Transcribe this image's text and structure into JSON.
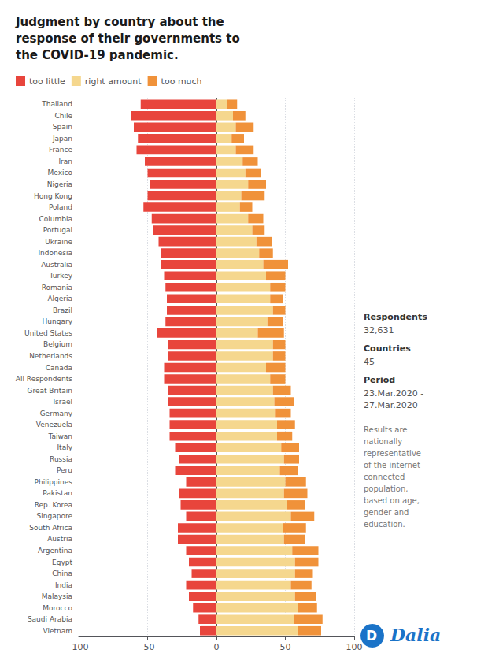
{
  "chart_data": {
    "type": "bar",
    "orientation": "horizontal",
    "stacked": true,
    "title": "Judgment by country about the\nresponse of their governments to\nthe COVID-19 pandemic.",
    "categories": [
      "Thailand",
      "Chile",
      "Spain",
      "Japan",
      "France",
      "Iran",
      "Mexico",
      "Nigeria",
      "Hong Kong",
      "Poland",
      "Columbia",
      "Portugal",
      "Ukraine",
      "Indonesia",
      "Australia",
      "Turkey",
      "Romania",
      "Algeria",
      "Brazil",
      "Hungary",
      "United States",
      "Belgium",
      "Netherlands",
      "Canada",
      "All Respondents",
      "Great Britain",
      "Israel",
      "Germany",
      "Venezuela",
      "Taiwan",
      "Italy",
      "Russia",
      "Peru",
      "Philippines",
      "Pakistan",
      "Rep. Korea",
      "Singapore",
      "South Africa",
      "Austria",
      "Argentina",
      "Egypt",
      "China",
      "India",
      "Malaysia",
      "Morocco",
      "Saudi Arabia",
      "Vietnam"
    ],
    "series": [
      {
        "name": "too little",
        "color": "#e8453c",
        "values": [
          -55,
          -62,
          -60,
          -57,
          -58,
          -52,
          -50,
          -48,
          -50,
          -53,
          -47,
          -46,
          -42,
          -40,
          -40,
          -38,
          -37,
          -36,
          -36,
          -37,
          -43,
          -35,
          -35,
          -38,
          -38,
          -35,
          -35,
          -34,
          -34,
          -34,
          -30,
          -27,
          -30,
          -22,
          -27,
          -26,
          -22,
          -28,
          -28,
          -22,
          -20,
          -18,
          -22,
          -20,
          -17,
          -13,
          -12
        ]
      },
      {
        "name": "right amount",
        "color": "#f5d78e",
        "values": [
          8,
          12,
          14,
          11,
          14,
          19,
          21,
          23,
          18,
          17,
          23,
          26,
          29,
          31,
          34,
          36,
          39,
          39,
          41,
          37,
          30,
          41,
          41,
          36,
          39,
          41,
          42,
          43,
          44,
          44,
          47,
          49,
          46,
          50,
          49,
          51,
          54,
          48,
          49,
          55,
          57,
          57,
          54,
          57,
          59,
          56,
          59
        ]
      },
      {
        "name": "too much",
        "color": "#f0923a",
        "values": [
          7,
          9,
          13,
          9,
          13,
          11,
          11,
          13,
          17,
          9,
          11,
          9,
          11,
          10,
          18,
          14,
          11,
          9,
          9,
          11,
          19,
          9,
          9,
          14,
          11,
          13,
          14,
          11,
          13,
          11,
          13,
          11,
          13,
          15,
          17,
          13,
          17,
          17,
          15,
          19,
          17,
          13,
          15,
          15,
          14,
          21,
          17
        ]
      }
    ],
    "xlim": [
      -100,
      100
    ],
    "xticks": [
      -100,
      -50,
      0,
      50,
      100
    ],
    "grid": true,
    "legend": "top-left",
    "annotations": [
      "Respondents",
      "32,631",
      "Countries",
      "45",
      "Period",
      "23.Mar.2020 -\n27.Mar.2020",
      "Results are\nnationally\nrepresentative\nof the internet-\nconnected\npopulation,\nbased on age,\ngender and\neducation.",
      "D",
      "Dalia"
    ]
  }
}
